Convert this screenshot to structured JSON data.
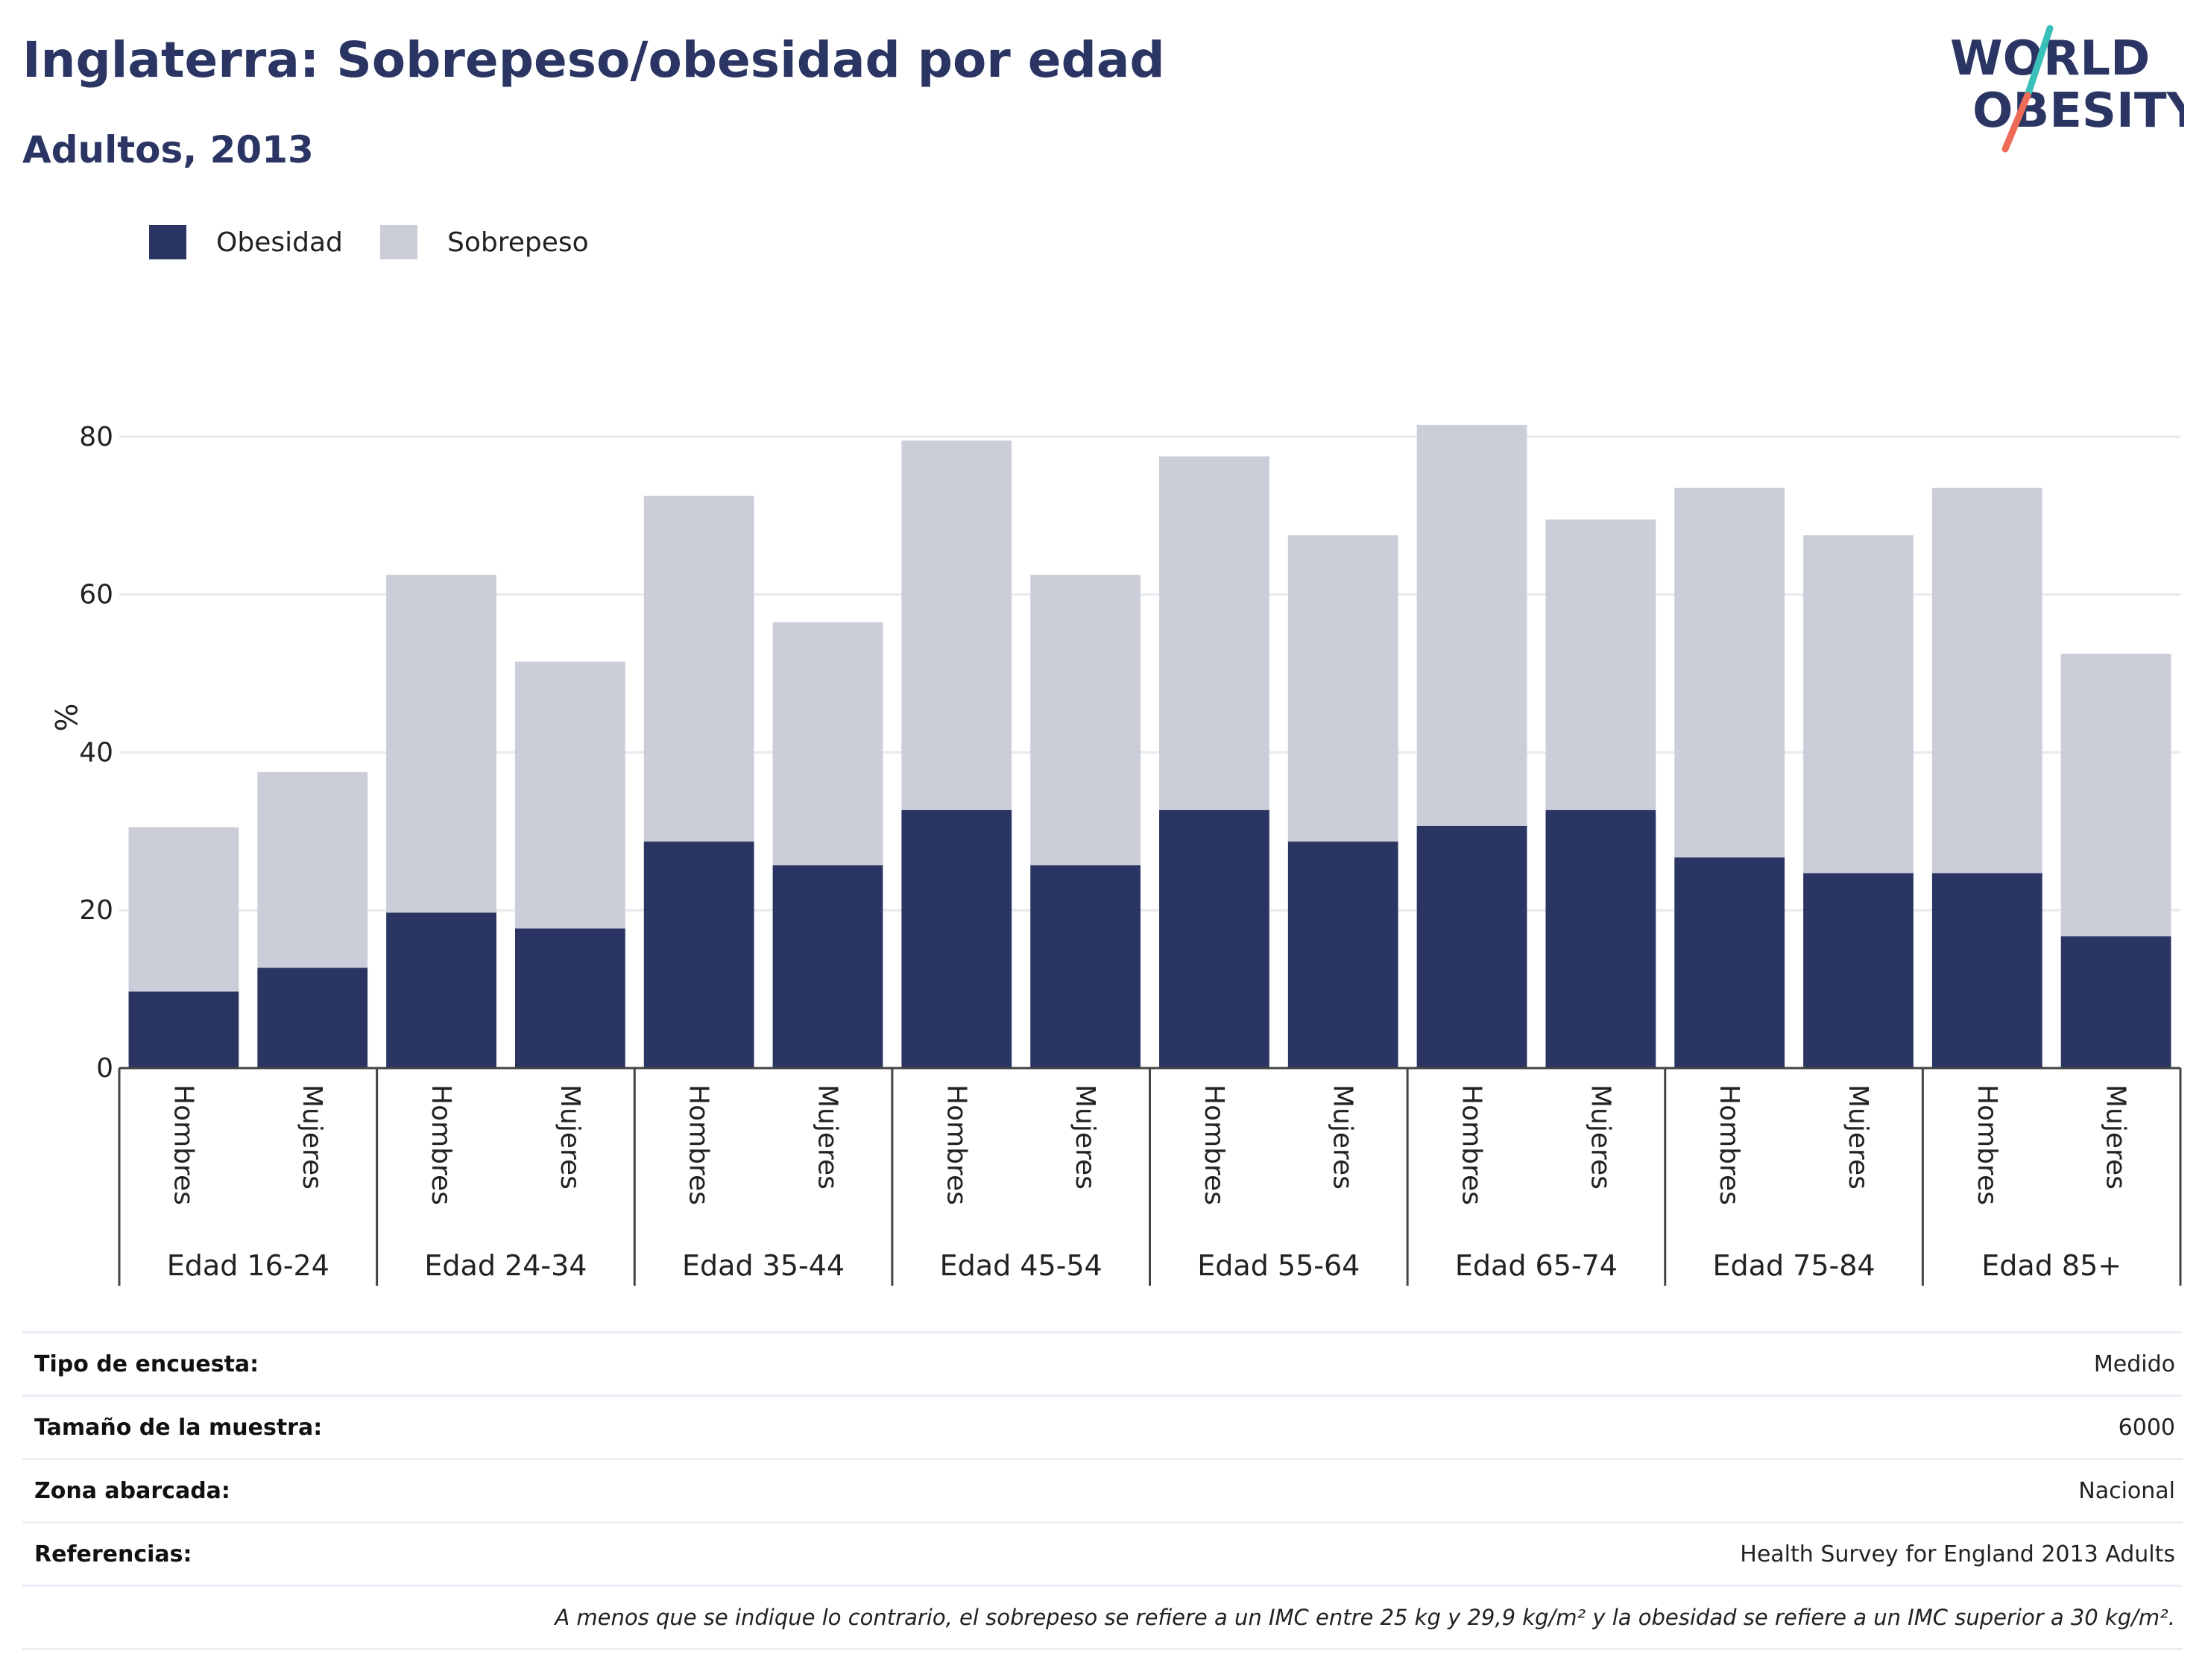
{
  "title": "Inglaterra: Sobrepeso/obesidad por edad",
  "subtitle": "Adultos, 2013",
  "logo": {
    "line1": "WORLD",
    "line2": "OBESITY"
  },
  "colors": {
    "obesidad": "#2a3563",
    "sobrepeso": "#cbcdd9",
    "title": "#2a3563",
    "logo_teal": "#3bbfb9",
    "logo_coral": "#ee6b57"
  },
  "chart_data": {
    "type": "bar",
    "stacked": true,
    "title": "Inglaterra: Sobrepeso/obesidad por edad",
    "subtitle": "Adultos, 2013",
    "ylabel": "%",
    "xlabel": "",
    "ylim": [
      0,
      90
    ],
    "yticks": [
      0,
      20,
      40,
      60,
      80
    ],
    "grid": true,
    "legend_position": "top-left",
    "sub_categories": [
      "Hombres",
      "Mujeres"
    ],
    "groups": [
      "Edad 16-24",
      "Edad 24-34",
      "Edad 35-44",
      "Edad 45-54",
      "Edad 55-64",
      "Edad 65-74",
      "Edad 75-84",
      "Edad 85+"
    ],
    "series": [
      {
        "name": "Obesidad",
        "color": "#2a3563",
        "values": [
          [
            9.7,
            12.7
          ],
          [
            19.7,
            17.7
          ],
          [
            28.7,
            25.7
          ],
          [
            32.7,
            25.7
          ],
          [
            32.7,
            28.7
          ],
          [
            30.7,
            32.7
          ],
          [
            26.7,
            24.7
          ],
          [
            24.7,
            16.7
          ]
        ]
      },
      {
        "name": "Sobrepeso",
        "color": "#cbcdd9",
        "values": [
          [
            20.8,
            24.8
          ],
          [
            42.8,
            33.8
          ],
          [
            43.8,
            30.8
          ],
          [
            46.8,
            36.8
          ],
          [
            44.8,
            38.8
          ],
          [
            50.8,
            36.8
          ],
          [
            46.8,
            42.8
          ],
          [
            48.8,
            35.8
          ]
        ]
      }
    ]
  },
  "info": {
    "rows": [
      {
        "label": "Tipo de encuesta:",
        "value": "Medido"
      },
      {
        "label": "Tamaño de la muestra:",
        "value": "6000"
      },
      {
        "label": "Zona abarcada:",
        "value": "Nacional"
      },
      {
        "label": "Referencias:",
        "value": "Health Survey for England 2013 Adults"
      }
    ],
    "note": "A menos que se indique lo contrario, el sobrepeso se refiere a un IMC entre 25 kg y 29,9 kg/m² y la obesidad se refiere a un IMC superior a 30 kg/m²."
  }
}
